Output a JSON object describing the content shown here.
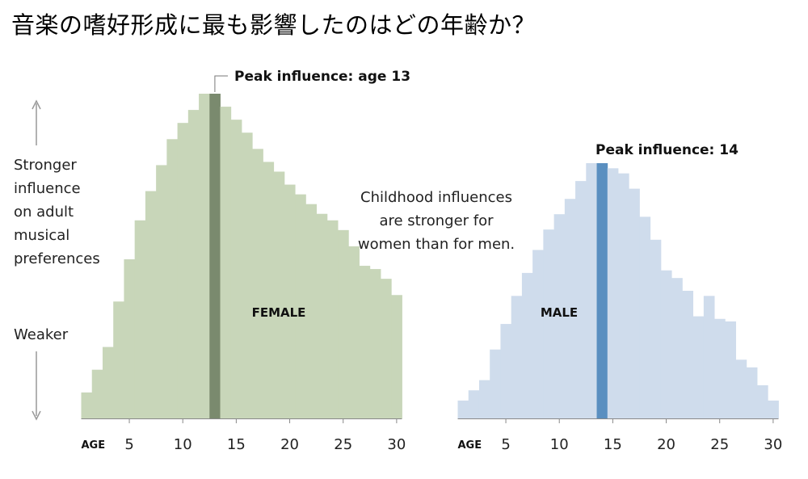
{
  "title": "音楽の嗜好形成に最も影響したのはどの年齢か？",
  "y_axis_labels": {
    "stronger": "Stronger influence on adult musical preferences",
    "weaker": "Weaker"
  },
  "annotation": "Childhood influences are stronger for women than for men.",
  "colors": {
    "female_fill": "#c8d6b9",
    "female_peak": "#7a8a6e",
    "male_fill": "#cfdcec",
    "male_peak": "#5a8fc0",
    "axis": "#888888"
  },
  "chart_data": [
    {
      "type": "bar",
      "name": "FEMALE",
      "x_label": "AGE",
      "x": [
        1,
        2,
        3,
        4,
        5,
        6,
        7,
        8,
        9,
        10,
        11,
        12,
        13,
        14,
        15,
        16,
        17,
        18,
        19,
        20,
        21,
        22,
        23,
        24,
        25,
        26,
        27,
        28,
        29,
        30
      ],
      "values": [
        0.08,
        0.15,
        0.22,
        0.36,
        0.49,
        0.61,
        0.7,
        0.78,
        0.86,
        0.91,
        0.95,
        1.0,
        1.0,
        0.96,
        0.92,
        0.88,
        0.83,
        0.79,
        0.76,
        0.72,
        0.69,
        0.66,
        0.63,
        0.61,
        0.58,
        0.53,
        0.47,
        0.46,
        0.43,
        0.38
      ],
      "peak_age": 13,
      "peak_label": "Peak influence: age 13",
      "xticks": [
        5,
        10,
        15,
        20,
        25,
        30
      ],
      "xlim": [
        0.5,
        30.5
      ],
      "ylim": [
        0,
        1
      ]
    },
    {
      "type": "bar",
      "name": "MALE",
      "x_label": "AGE",
      "x": [
        1,
        2,
        3,
        4,
        5,
        6,
        7,
        8,
        9,
        10,
        11,
        12,
        13,
        14,
        15,
        16,
        17,
        18,
        19,
        20,
        21,
        22,
        23,
        24,
        25,
        26,
        27,
        28,
        29,
        30
      ],
      "values": [
        0.07,
        0.11,
        0.15,
        0.27,
        0.37,
        0.48,
        0.57,
        0.66,
        0.74,
        0.8,
        0.86,
        0.93,
        1.0,
        1.0,
        0.98,
        0.96,
        0.9,
        0.79,
        0.7,
        0.58,
        0.55,
        0.5,
        0.4,
        0.48,
        0.39,
        0.38,
        0.23,
        0.2,
        0.13,
        0.07
      ],
      "peak_age": 14,
      "peak_label": "Peak influence: 14",
      "xticks": [
        5,
        10,
        15,
        20,
        25,
        30
      ],
      "xlim": [
        0.5,
        30.5
      ],
      "ylim": [
        0,
        1
      ]
    }
  ]
}
